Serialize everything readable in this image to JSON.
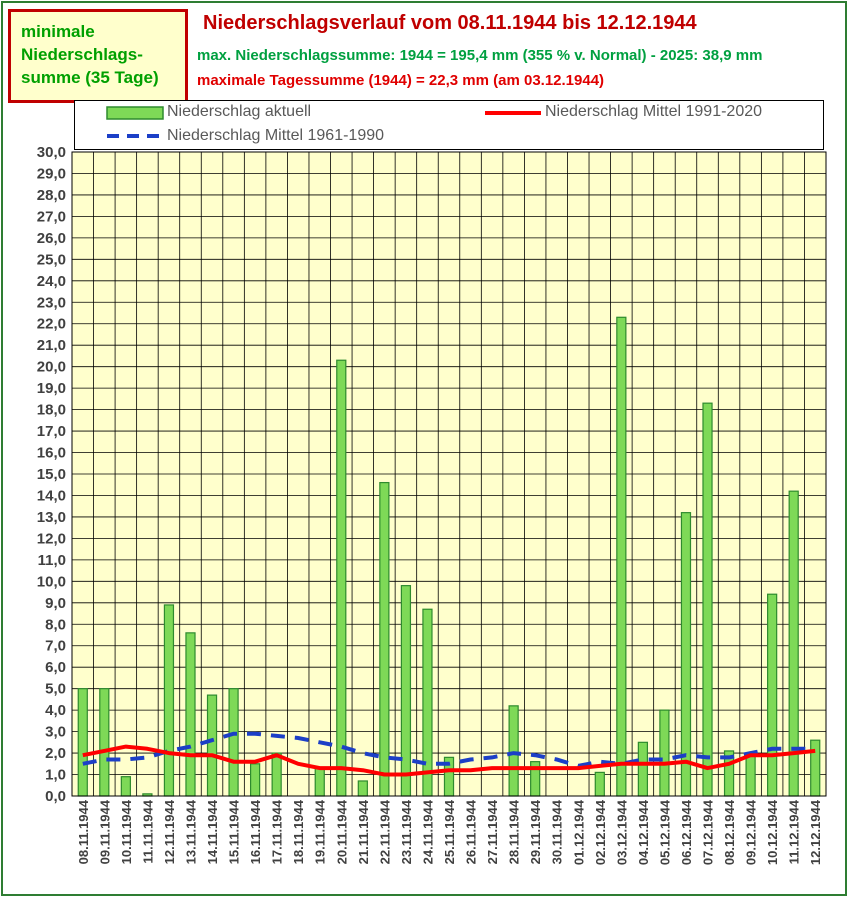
{
  "badge": {
    "line1": "minimale",
    "line2": "Niederschlags-",
    "line3": "summe (35 Tage)"
  },
  "header": {
    "title": "Niederschlagsverlauf vom 08.11.1944 bis 12.12.1944",
    "subtitle1": "max. Niederschlagssumme: 1944 = 195,4 mm (355 % v. Normal) - 2025: 38,9 mm",
    "subtitle2": "maximale Tagessumme (1944) = 22,3 mm (am 03.12.1944)"
  },
  "legend": {
    "actual": "Niederschlag aktuell",
    "mean9120": "Niederschlag Mittel 1991-2020",
    "mean6190": "Niederschlag Mittel 1961-1990"
  },
  "colors": {
    "bar_fill": "#7ed957",
    "bar_stroke": "#2e8b2e",
    "line_9120": "#ff0000",
    "line_6190": "#1c3fc7",
    "plot_bg": "#ffffcc",
    "badge_bg": "#ffffcc"
  },
  "chart_data": {
    "type": "bar",
    "ylim": [
      0,
      30
    ],
    "ytick_step": 1,
    "yticks": [
      "0,0",
      "1,0",
      "2,0",
      "3,0",
      "4,0",
      "5,0",
      "6,0",
      "7,0",
      "8,0",
      "9,0",
      "10,0",
      "11,0",
      "12,0",
      "13,0",
      "14,0",
      "15,0",
      "16,0",
      "17,0",
      "18,0",
      "19,0",
      "20,0",
      "21,0",
      "22,0",
      "23,0",
      "24,0",
      "25,0",
      "26,0",
      "27,0",
      "28,0",
      "29,0",
      "30,0"
    ],
    "grid": true,
    "categories": [
      "08.11.1944",
      "09.11.1944",
      "10.11.1944",
      "11.11.1944",
      "12.11.1944",
      "13.11.1944",
      "14.11.1944",
      "15.11.1944",
      "16.11.1944",
      "17.11.1944",
      "18.11.1944",
      "19.11.1944",
      "20.11.1944",
      "21.11.1944",
      "22.11.1944",
      "23.11.1944",
      "24.11.1944",
      "25.11.1944",
      "26.11.1944",
      "27.11.1944",
      "28.11.1944",
      "29.11.1944",
      "30.11.1944",
      "01.12.1944",
      "02.12.1944",
      "03.12.1944",
      "04.12.1944",
      "05.12.1944",
      "06.12.1944",
      "07.12.1944",
      "08.12.1944",
      "09.12.1944",
      "10.12.1944",
      "11.12.1944",
      "12.12.1944"
    ],
    "series": [
      {
        "name": "Niederschlag aktuell",
        "kind": "bar",
        "values": [
          5.0,
          5.0,
          0.9,
          0.1,
          8.9,
          7.6,
          4.7,
          5.0,
          1.5,
          2.0,
          0,
          1.3,
          20.3,
          0.7,
          14.6,
          9.8,
          8.7,
          1.8,
          0,
          0,
          4.2,
          1.6,
          0,
          0,
          1.1,
          22.3,
          2.5,
          4.0,
          13.2,
          18.3,
          2.1,
          2.0,
          9.4,
          14.2,
          2.6
        ]
      },
      {
        "name": "Niederschlag Mittel 1991-2020",
        "kind": "line",
        "values": [
          1.9,
          2.1,
          2.3,
          2.2,
          2.0,
          1.9,
          1.9,
          1.6,
          1.6,
          1.9,
          1.5,
          1.3,
          1.3,
          1.2,
          1.0,
          1.0,
          1.1,
          1.2,
          1.2,
          1.3,
          1.3,
          1.3,
          1.3,
          1.3,
          1.4,
          1.5,
          1.5,
          1.5,
          1.6,
          1.3,
          1.5,
          1.9,
          1.9,
          2.0,
          2.1
        ]
      },
      {
        "name": "Niederschlag Mittel 1961-1990",
        "kind": "line",
        "values": [
          1.5,
          1.7,
          1.7,
          1.8,
          2.1,
          2.3,
          2.6,
          2.9,
          2.9,
          2.8,
          2.7,
          2.5,
          2.3,
          2.0,
          1.8,
          1.7,
          1.5,
          1.5,
          1.7,
          1.8,
          2.0,
          1.9,
          1.7,
          1.4,
          1.6,
          1.5,
          1.7,
          1.7,
          1.9,
          1.8,
          1.8,
          2.0,
          2.2,
          2.2,
          2.2
        ]
      }
    ]
  }
}
